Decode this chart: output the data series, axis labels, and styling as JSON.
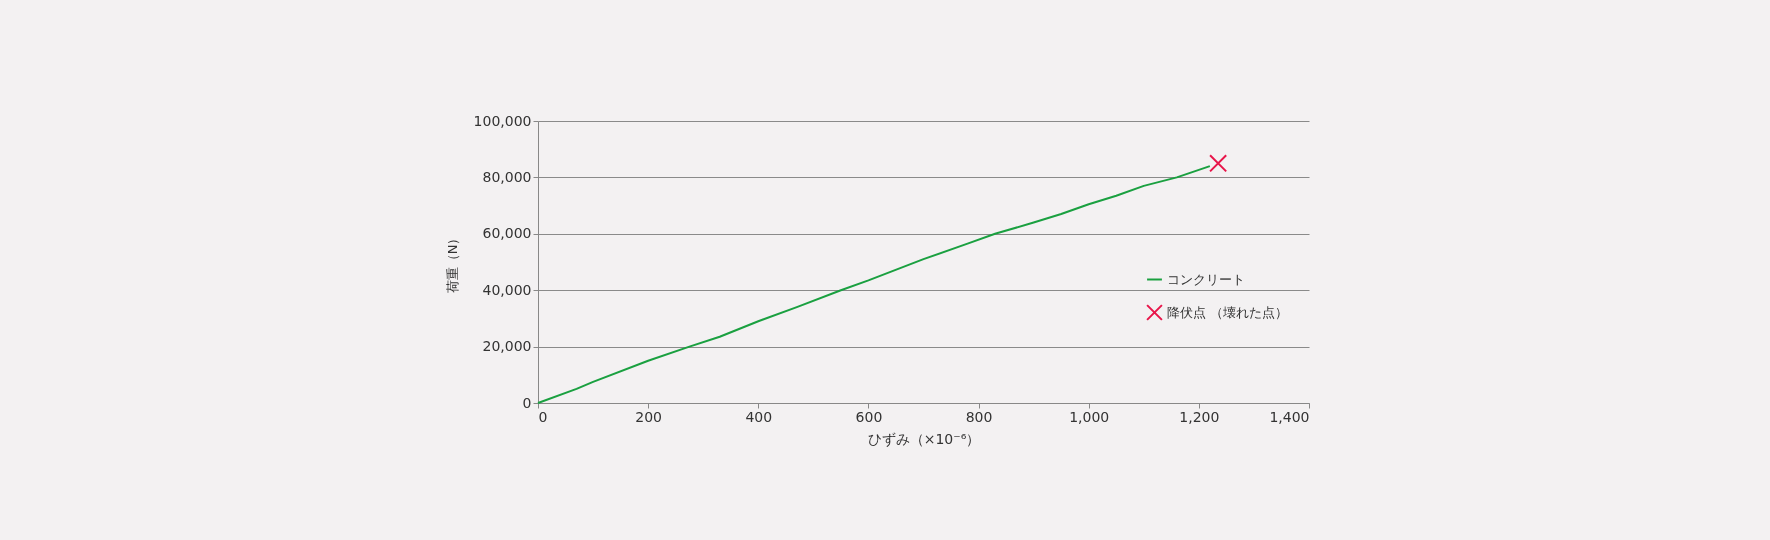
{
  "chart_data": {
    "type": "line",
    "xlabel": "ひずみ（×10⁻⁶）",
    "ylabel": "荷重（N）",
    "xlim": [
      0,
      1400
    ],
    "xticks": [
      0,
      {
        "value": 200,
        "label": "200"
      },
      {
        "value": 400,
        "label": "400"
      },
      {
        "value": 600,
        "label": "600"
      },
      {
        "value": 800,
        "label": "800"
      },
      {
        "value": 1000,
        "label": "1,000"
      },
      {
        "value": 1200,
        "label": "1,200"
      },
      {
        "value": 1400,
        "label": "1,400"
      }
    ],
    "ylim": [
      0,
      100000
    ],
    "yticks": [
      0,
      {
        "value": 20000,
        "label": "20,000"
      },
      {
        "value": 40000,
        "label": "40,000"
      },
      {
        "value": 60000,
        "label": "60,000"
      },
      {
        "value": 80000,
        "label": "80,000"
      },
      {
        "value": 100000,
        "label": "100,000"
      }
    ],
    "grid": "y",
    "legend": "right",
    "series": [
      {
        "name": "コンクリート",
        "color": "#1aa040",
        "x": [
          0,
          70,
          100,
          200,
          275,
          330,
          400,
          470,
          550,
          600,
          700,
          780,
          830,
          900,
          950,
          1000,
          1050,
          1100,
          1160,
          1220
        ],
        "values": [
          0,
          5000,
          7500,
          15000,
          20000,
          23500,
          29000,
          34000,
          40000,
          43500,
          51000,
          56500,
          60000,
          64000,
          67000,
          70500,
          73500,
          77000,
          80000,
          84000
        ]
      },
      {
        "name": "降伏点 （壊れた点）",
        "type": "scatter",
        "marker": "cross",
        "color": "#e8154a",
        "x": [
          1235
        ],
        "values": [
          85000
        ]
      }
    ]
  }
}
